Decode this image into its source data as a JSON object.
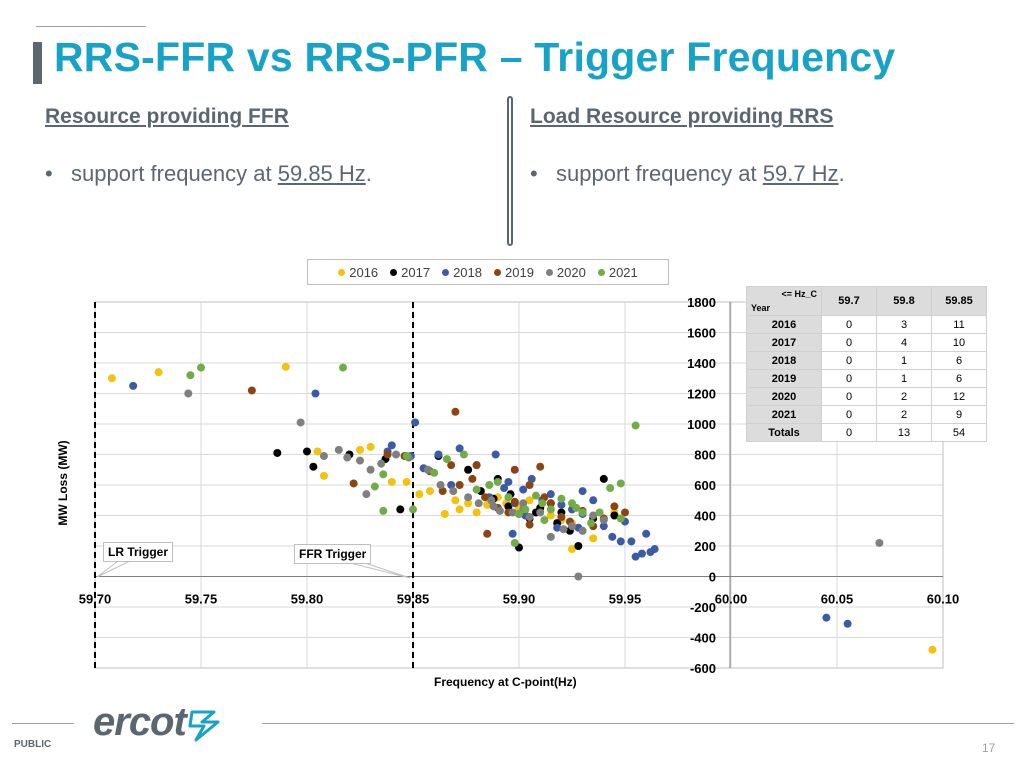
{
  "slide": {
    "title": "RRS-FFR vs RRS-PFR – Trigger Frequency",
    "left": {
      "heading": "Resource providing FFR",
      "bullet_prefix": "support frequency at ",
      "bullet_value": "59.85 Hz",
      "bullet_suffix": "."
    },
    "right": {
      "heading": "Load Resource providing RRS",
      "bullet_prefix": "support frequency at ",
      "bullet_value": "59.7 Hz",
      "bullet_suffix": "."
    },
    "footer": {
      "logo_text": "ercot",
      "classification": "PUBLIC",
      "page_number": "17"
    }
  },
  "colors": {
    "title": "#17a2c7",
    "text": "#5b6770",
    "2016": "#f4c20d",
    "2017": "#000000",
    "2018": "#3c5aa6",
    "2019": "#8b4513",
    "2020": "#7f7f7f",
    "2021": "#70ad47"
  },
  "table": {
    "corner_top": "<= Hz_C",
    "corner_bottom": "Year",
    "columns": [
      "59.7",
      "59.8",
      "59.85"
    ],
    "rows": [
      {
        "year": "2016",
        "values": [
          "0",
          "3",
          "11"
        ]
      },
      {
        "year": "2017",
        "values": [
          "0",
          "4",
          "10"
        ]
      },
      {
        "year": "2018",
        "values": [
          "0",
          "1",
          "6"
        ]
      },
      {
        "year": "2019",
        "values": [
          "0",
          "1",
          "6"
        ]
      },
      {
        "year": "2020",
        "values": [
          "0",
          "2",
          "12"
        ]
      },
      {
        "year": "2021",
        "values": [
          "0",
          "2",
          "9"
        ]
      },
      {
        "year": "Totals",
        "values": [
          "0",
          "13",
          "54"
        ]
      }
    ]
  },
  "chart_data": {
    "type": "scatter",
    "title": "",
    "xlabel": "Frequency  at C-point(Hz)",
    "ylabel": "MW Loss (MW)",
    "xlim": [
      59.7,
      60.1
    ],
    "ylim": [
      -600,
      1800
    ],
    "x_ticks": [
      "59.70",
      "59.75",
      "59.80",
      "59.85",
      "59.90",
      "59.95",
      "60.00",
      "60.05",
      "60.10"
    ],
    "y_ticks": [
      "1800",
      "1600",
      "1400",
      "1200",
      "1000",
      "800",
      "600",
      "400",
      "200",
      "0",
      "-200",
      "-400",
      "-600"
    ],
    "grid": true,
    "legend_position": "top",
    "annotations": [
      {
        "text": "LR Trigger",
        "x": 59.7
      },
      {
        "text": "FFR Trigger",
        "x": 59.85
      }
    ],
    "series": [
      {
        "name": "2016",
        "color": "#f4c20d",
        "points": [
          [
            59.708,
            1300
          ],
          [
            59.73,
            1340
          ],
          [
            59.79,
            1375
          ],
          [
            59.805,
            820
          ],
          [
            59.808,
            660
          ],
          [
            59.825,
            830
          ],
          [
            59.83,
            850
          ],
          [
            59.84,
            620
          ],
          [
            59.847,
            620
          ],
          [
            59.853,
            540
          ],
          [
            59.858,
            560
          ],
          [
            59.865,
            410
          ],
          [
            59.87,
            500
          ],
          [
            59.872,
            440
          ],
          [
            59.876,
            480
          ],
          [
            59.88,
            420
          ],
          [
            59.885,
            470
          ],
          [
            59.89,
            520
          ],
          [
            59.894,
            480
          ],
          [
            59.9,
            450
          ],
          [
            59.905,
            500
          ],
          [
            59.91,
            430
          ],
          [
            59.915,
            400
          ],
          [
            59.92,
            370
          ],
          [
            59.925,
            350
          ],
          [
            59.93,
            300
          ],
          [
            59.935,
            330
          ],
          [
            59.94,
            380
          ],
          [
            59.945,
            420
          ],
          [
            59.925,
            180
          ],
          [
            59.935,
            250
          ],
          [
            60.095,
            -480
          ]
        ]
      },
      {
        "name": "2017",
        "color": "#000000",
        "points": [
          [
            59.786,
            810
          ],
          [
            59.8,
            820
          ],
          [
            59.803,
            720
          ],
          [
            59.82,
            800
          ],
          [
            59.837,
            770
          ],
          [
            59.844,
            440
          ],
          [
            59.862,
            790
          ],
          [
            59.876,
            700
          ],
          [
            59.882,
            560
          ],
          [
            59.888,
            510
          ],
          [
            59.89,
            640
          ],
          [
            59.895,
            460
          ],
          [
            59.9,
            410
          ],
          [
            59.905,
            380
          ],
          [
            59.91,
            450
          ],
          [
            59.915,
            480
          ],
          [
            59.92,
            420
          ],
          [
            59.924,
            300
          ],
          [
            59.928,
            200
          ],
          [
            59.935,
            380
          ],
          [
            59.94,
            640
          ],
          [
            59.945,
            400
          ],
          [
            59.9,
            190
          ],
          [
            59.918,
            350
          ],
          [
            59.896,
            540
          ],
          [
            59.908,
            420
          ]
        ]
      },
      {
        "name": "2018",
        "color": "#3c5aa6",
        "points": [
          [
            59.718,
            1250
          ],
          [
            59.804,
            1200
          ],
          [
            59.851,
            1010
          ],
          [
            59.84,
            860
          ],
          [
            59.838,
            820
          ],
          [
            59.849,
            790
          ],
          [
            59.855,
            710
          ],
          [
            59.862,
            800
          ],
          [
            59.868,
            600
          ],
          [
            59.872,
            840
          ],
          [
            59.88,
            730
          ],
          [
            59.886,
            520
          ],
          [
            59.889,
            800
          ],
          [
            59.893,
            580
          ],
          [
            59.898,
            480
          ],
          [
            59.902,
            570
          ],
          [
            59.906,
            640
          ],
          [
            59.911,
            500
          ],
          [
            59.915,
            540
          ],
          [
            59.92,
            470
          ],
          [
            59.925,
            440
          ],
          [
            59.93,
            410
          ],
          [
            59.935,
            500
          ],
          [
            59.94,
            330
          ],
          [
            59.944,
            260
          ],
          [
            59.948,
            230
          ],
          [
            59.95,
            360
          ],
          [
            59.953,
            230
          ],
          [
            59.955,
            130
          ],
          [
            59.958,
            150
          ],
          [
            59.962,
            160
          ],
          [
            59.964,
            180
          ],
          [
            59.96,
            280
          ],
          [
            59.903,
            400
          ],
          [
            59.918,
            320
          ],
          [
            59.928,
            320
          ],
          [
            59.93,
            560
          ],
          [
            59.895,
            620
          ],
          [
            59.897,
            280
          ],
          [
            60.045,
            -270
          ],
          [
            60.055,
            -310
          ]
        ]
      },
      {
        "name": "2019",
        "color": "#8b4513",
        "points": [
          [
            59.774,
            1220
          ],
          [
            59.87,
            1080
          ],
          [
            59.822,
            610
          ],
          [
            59.838,
            800
          ],
          [
            59.846,
            790
          ],
          [
            59.858,
            690
          ],
          [
            59.864,
            560
          ],
          [
            59.868,
            730
          ],
          [
            59.872,
            600
          ],
          [
            59.878,
            640
          ],
          [
            59.88,
            730
          ],
          [
            59.884,
            520
          ],
          [
            59.89,
            450
          ],
          [
            59.895,
            420
          ],
          [
            59.898,
            700
          ],
          [
            59.905,
            600
          ],
          [
            59.91,
            720
          ],
          [
            59.912,
            520
          ],
          [
            59.92,
            390
          ],
          [
            59.924,
            360
          ],
          [
            59.93,
            430
          ],
          [
            59.935,
            330
          ],
          [
            59.94,
            380
          ],
          [
            59.945,
            460
          ],
          [
            59.95,
            420
          ],
          [
            59.905,
            340
          ],
          [
            59.885,
            280
          ],
          [
            59.898,
            490
          ],
          [
            59.915,
            480
          ]
        ]
      },
      {
        "name": "2020",
        "color": "#7f7f7f",
        "points": [
          [
            59.744,
            1200
          ],
          [
            59.797,
            1010
          ],
          [
            59.808,
            790
          ],
          [
            59.815,
            830
          ],
          [
            59.819,
            780
          ],
          [
            59.825,
            760
          ],
          [
            59.83,
            700
          ],
          [
            59.835,
            740
          ],
          [
            59.828,
            540
          ],
          [
            59.842,
            800
          ],
          [
            59.848,
            780
          ],
          [
            59.857,
            700
          ],
          [
            59.863,
            600
          ],
          [
            59.869,
            560
          ],
          [
            59.876,
            520
          ],
          [
            59.881,
            480
          ],
          [
            59.887,
            500
          ],
          [
            59.891,
            430
          ],
          [
            59.897,
            420
          ],
          [
            59.902,
            480
          ],
          [
            59.905,
            390
          ],
          [
            59.91,
            420
          ],
          [
            59.915,
            260
          ],
          [
            59.921,
            310
          ],
          [
            59.925,
            330
          ],
          [
            59.93,
            300
          ],
          [
            59.935,
            400
          ],
          [
            59.94,
            370
          ],
          [
            59.928,
            0
          ],
          [
            60.07,
            220
          ],
          [
            59.902,
            440
          ],
          [
            59.888,
            460
          ]
        ]
      },
      {
        "name": "2021",
        "color": "#70ad47",
        "points": [
          [
            59.745,
            1320
          ],
          [
            59.75,
            1370
          ],
          [
            59.817,
            1370
          ],
          [
            59.836,
            430
          ],
          [
            59.832,
            590
          ],
          [
            59.836,
            670
          ],
          [
            59.847,
            790
          ],
          [
            59.85,
            440
          ],
          [
            59.86,
            680
          ],
          [
            59.866,
            770
          ],
          [
            59.874,
            800
          ],
          [
            59.88,
            570
          ],
          [
            59.886,
            600
          ],
          [
            59.89,
            620
          ],
          [
            59.895,
            520
          ],
          [
            59.9,
            410
          ],
          [
            59.903,
            440
          ],
          [
            59.908,
            530
          ],
          [
            59.911,
            480
          ],
          [
            59.915,
            440
          ],
          [
            59.92,
            510
          ],
          [
            59.925,
            480
          ],
          [
            59.93,
            420
          ],
          [
            59.934,
            350
          ],
          [
            59.938,
            420
          ],
          [
            59.943,
            580
          ],
          [
            59.948,
            380
          ],
          [
            59.955,
            990
          ],
          [
            59.948,
            610
          ],
          [
            59.898,
            220
          ],
          [
            59.912,
            370
          ],
          [
            59.927,
            450
          ]
        ]
      }
    ]
  }
}
